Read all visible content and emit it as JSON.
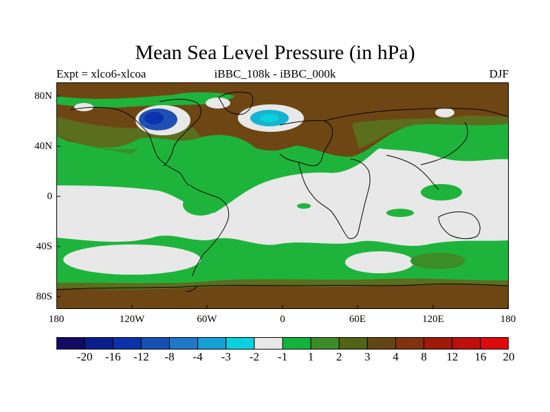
{
  "title": "Mean Sea Level Pressure (in hPa)",
  "subtitle_left": "Expt = xlco6-xlcoa",
  "subtitle_center": "iBBC_108k - iBBC_000k",
  "subtitle_right": "DJF",
  "axes": {
    "x_ticks": [
      "180",
      "120W",
      "60W",
      "0",
      "60E",
      "120E",
      "180"
    ],
    "y_ticks": [
      "80N",
      "40N",
      "0",
      "40S",
      "80S"
    ]
  },
  "colorbar": {
    "labels": [
      "-20",
      "-16",
      "-12",
      "-8",
      "-4",
      "-3",
      "-2",
      "-1",
      "1",
      "2",
      "3",
      "4",
      "8",
      "12",
      "16",
      "20"
    ],
    "colors": [
      "#140a64",
      "#0a1e8c",
      "#0a32aa",
      "#1450b4",
      "#1e78c8",
      "#14a0d2",
      "#0ad2dc",
      "#e8e8e8",
      "#14b43c",
      "#3c8c28",
      "#506414",
      "#644614",
      "#82320f",
      "#a0190a",
      "#be0f0a",
      "#dc0a0a"
    ]
  },
  "map_colors": {
    "background_green": "#1eb43c",
    "near_zero": "#e8e8e8",
    "brown": "#6e4614",
    "olive": "#5a6e1e",
    "dark_green": "#3c8c28",
    "low_blue": "#1e50b4",
    "low_cyan": "#14b4d2"
  }
}
